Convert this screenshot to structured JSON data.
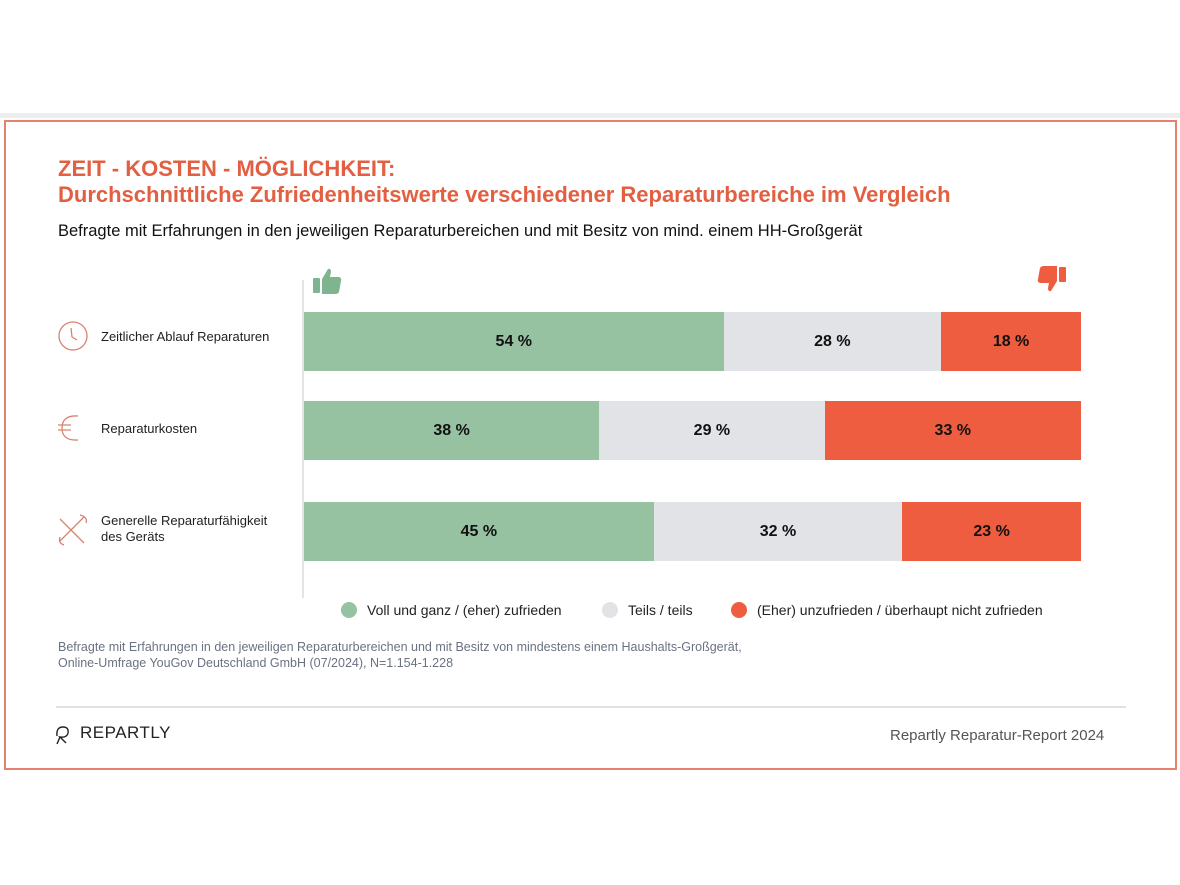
{
  "title_line1": "ZEIT - KOSTEN - MÖGLICHKEIT:",
  "title_line2": "Durchschnittliche Zufriedenheitswerte verschiedener Reparaturbereiche im Vergleich",
  "subtitle": "Befragte mit Erfahrungen in den jeweiligen Reparaturbereichen und mit Besitz von mind. einem HH-Großgerät",
  "chart_data": {
    "type": "bar",
    "orientation": "horizontal-stacked-100",
    "categories": [
      "Zeitlicher Ablauf Reparaturen",
      "Reparaturkosten",
      "Generelle Reparaturfähigkeit des  Geräts"
    ],
    "category_icons": [
      "clock-icon",
      "euro-icon",
      "tools-icon"
    ],
    "series": [
      {
        "name": "Voll und ganz / (eher) zufrieden",
        "values": [
          54,
          38,
          45
        ],
        "labels": [
          "54 %",
          "38 %",
          "45 %"
        ],
        "color": "#96c2a2"
      },
      {
        "name": "Teils / teils",
        "values": [
          28,
          29,
          32
        ],
        "labels": [
          "28 %",
          "29 %",
          "32 %"
        ],
        "color": "#e2e3e6"
      },
      {
        "name": "(Eher) unzufrieden / überhaupt nicht zufrieden",
        "values": [
          18,
          33,
          23
        ],
        "labels": [
          "18 %",
          "33 %",
          "23 %"
        ],
        "color": "#ee5d40"
      }
    ],
    "legend_position": "bottom",
    "left_marker": "thumbs-up-icon",
    "right_marker": "thumbs-down-icon"
  },
  "source_line1": "Befragte mit Erfahrungen in den jeweiligen Reparaturbereichen und mit Besitz von mindestens einem Haushalts-Großgerät,",
  "source_line2": "Online-Umfrage YouGov Deutschland GmbH (07/2024), N=1.154-1.228",
  "brand": "REPARTLY",
  "report": "Repartly Reparatur-Report 2024"
}
